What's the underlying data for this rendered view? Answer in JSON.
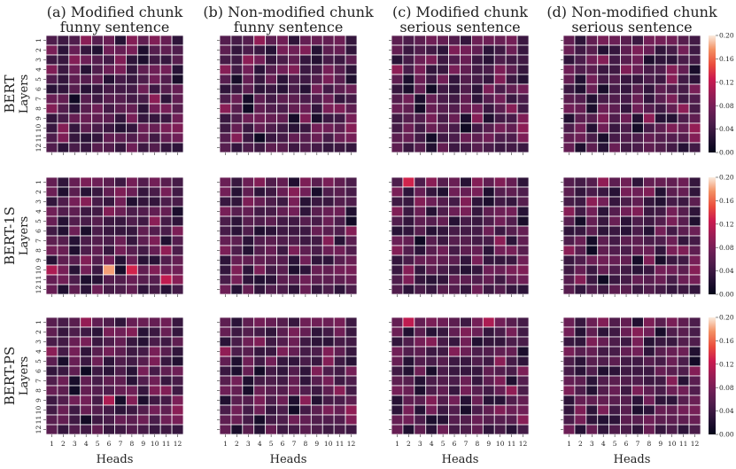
{
  "chart_data": {
    "type": "heatmap",
    "columns": [
      {
        "title_line1": "(a) Modified chunk",
        "title_line2": "funny sentence"
      },
      {
        "title_line1": "(b) Non-modified chunk",
        "title_line2": "funny sentence"
      },
      {
        "title_line1": "(c) Modified chunk",
        "title_line2": "serious sentence"
      },
      {
        "title_line1": "(d) Non-modified chunk",
        "title_line2": "serious sentence"
      }
    ],
    "rows": [
      {
        "model": "BERT",
        "ylabel": "Layers"
      },
      {
        "model": "BERT-1S",
        "ylabel": "Layers"
      },
      {
        "model": "BERT-PS",
        "ylabel": "Layers"
      }
    ],
    "xlabel": "Heads",
    "x_ticks": [
      "1",
      "2",
      "3",
      "4",
      "5",
      "6",
      "7",
      "8",
      "9",
      "10",
      "11",
      "12"
    ],
    "y_ticks": [
      "1",
      "2",
      "3",
      "4",
      "5",
      "6",
      "7",
      "8",
      "9",
      "10",
      "11",
      "12"
    ],
    "colorbar": {
      "range": [
        0.0,
        0.2
      ],
      "ticks": [
        "0.00",
        "0.04",
        "0.08",
        "0.12",
        "0.16",
        "0.20"
      ],
      "colormap": "rocket"
    },
    "cell_values_note_free": true,
    "highlights": [
      {
        "model": "BERT-1S",
        "panel": "(a) Modified chunk funny sentence",
        "layer": 10,
        "head": 6,
        "value": 0.18
      },
      {
        "model": "BERT-1S",
        "panel": "(a) Modified chunk funny sentence",
        "layer": 10,
        "head": 8,
        "value": 0.13
      },
      {
        "model": "BERT-1S",
        "panel": "(a) Modified chunk funny sentence",
        "layer": 11,
        "head": 11,
        "value": 0.12
      },
      {
        "model": "BERT-1S",
        "panel": "(a) Modified chunk funny sentence",
        "layer": 10,
        "head": 1,
        "value": 0.11
      },
      {
        "model": "BERT-PS",
        "panel": "(a) Modified chunk funny sentence",
        "layer": 9,
        "head": 6,
        "value": 0.11
      },
      {
        "model": "BERT-1S",
        "panel": "(c) Modified chunk serious sentence",
        "layer": 1,
        "head": 2,
        "value": 0.13
      },
      {
        "model": "BERT-PS",
        "panel": "(c) Modified chunk serious sentence",
        "layer": 1,
        "head": 2,
        "value": 0.12
      },
      {
        "model": "BERT-PS",
        "panel": "(c) Modified chunk serious sentence",
        "layer": 1,
        "head": 9,
        "value": 0.11
      }
    ]
  }
}
